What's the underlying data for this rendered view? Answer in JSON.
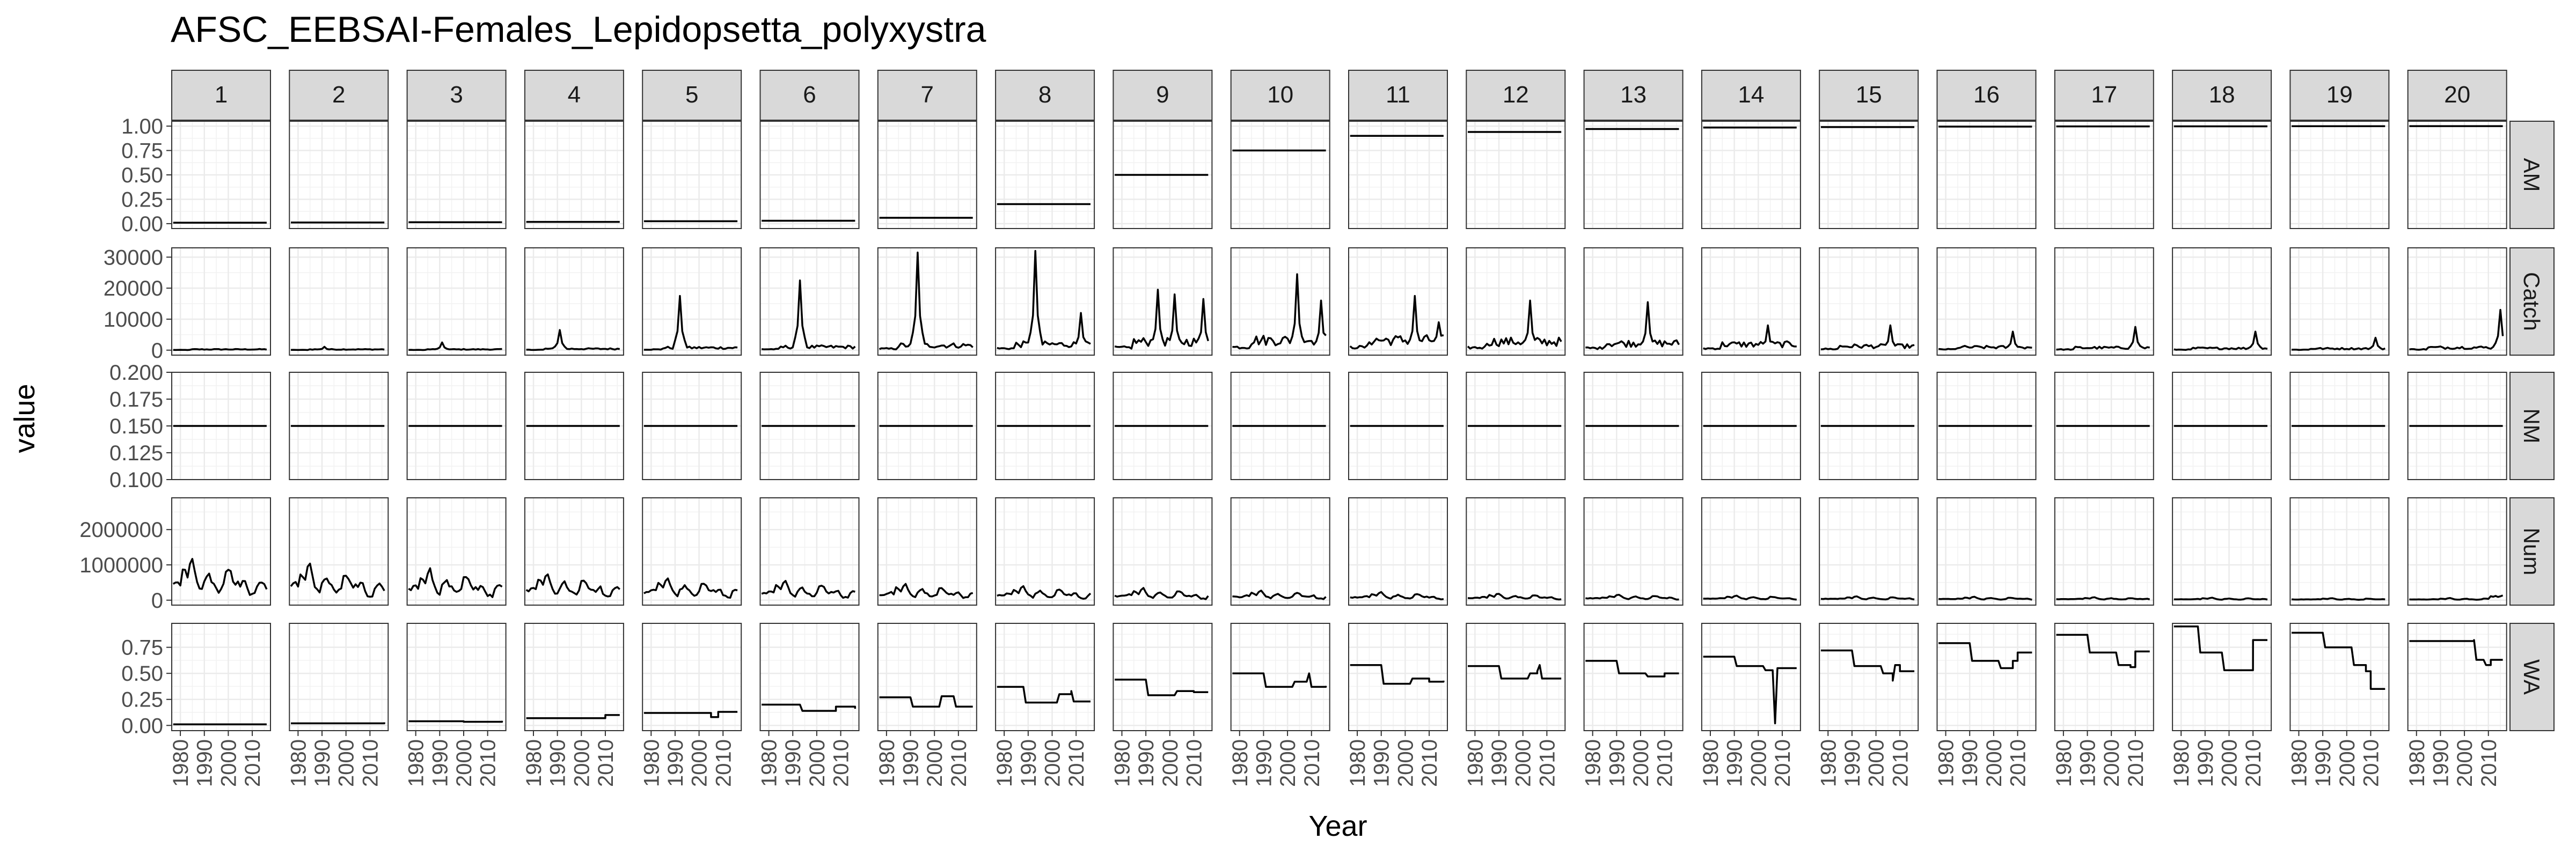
{
  "chart_data": {
    "type": "line",
    "title": "AFSC_EEBSAI-Females_Lepidopsetta_polyxystra",
    "xlabel": "Year",
    "ylabel": "value",
    "columns": [
      "1",
      "2",
      "3",
      "4",
      "5",
      "6",
      "7",
      "8",
      "9",
      "10",
      "11",
      "12",
      "13",
      "14",
      "15",
      "16",
      "17",
      "18",
      "19",
      "20"
    ],
    "x_ticks": [
      1980,
      1990,
      2000,
      2010
    ],
    "x_tick_labels": [
      "1980",
      "1990",
      "2000",
      "2010"
    ],
    "xlim": [
      1976.4,
      2017.6
    ],
    "grid": true,
    "legend": "none",
    "line_color": "#000000",
    "rows": [
      {
        "name": "AM",
        "ylim": [
          -0.05,
          1.05
        ],
        "y_ticks": [
          0.0,
          0.25,
          0.5,
          0.75,
          1.0
        ],
        "y_tick_labels": [
          "0.00",
          "0.25",
          "0.50",
          "0.75",
          "1.00"
        ],
        "constant": true,
        "values": [
          0.01,
          0.012,
          0.015,
          0.018,
          0.025,
          0.03,
          0.06,
          0.2,
          0.5,
          0.75,
          0.9,
          0.94,
          0.97,
          0.985,
          0.99,
          0.995,
          0.997,
          0.998,
          0.999,
          1.0
        ]
      },
      {
        "name": "Catch",
        "ylim": [
          -1600,
          33000
        ],
        "y_ticks": [
          0,
          10000,
          20000,
          30000
        ],
        "y_tick_labels": [
          "0",
          "10000",
          "20000",
          "30000"
        ],
        "peaks": [
          [],
          [
            [
              1991,
              1100
            ]
          ],
          [
            [
              1991,
              2500
            ]
          ],
          [
            [
              1991,
              6500
            ]
          ],
          [
            [
              1992,
              17500
            ]
          ],
          [
            [
              1993,
              22500
            ]
          ],
          [
            [
              1993,
              31500
            ]
          ],
          [
            [
              1993,
              32000
            ],
            [
              2012,
              12000
            ]
          ],
          [
            [
              1995,
              19500
            ],
            [
              2002,
              18000
            ],
            [
              2014,
              16500
            ]
          ],
          [
            [
              2004,
              24500
            ],
            [
              2014,
              16000
            ]
          ],
          [
            [
              2004,
              17500
            ],
            [
              2014,
              9000
            ]
          ],
          [
            [
              2003,
              16000
            ]
          ],
          [
            [
              2003,
              15500
            ]
          ],
          [
            [
              2004,
              8000
            ]
          ],
          [
            [
              2006,
              8000
            ]
          ],
          [
            [
              2008,
              6000
            ]
          ],
          [
            [
              2010,
              7500
            ]
          ],
          [
            [
              2011,
              6000
            ]
          ],
          [
            [
              2012,
              4000
            ]
          ],
          [
            [
              2015,
              13000
            ]
          ]
        ],
        "base": [
          300,
          300,
          300,
          500,
          900,
          1200,
          1800,
          2200,
          3200,
          3800,
          3800,
          3200,
          2600,
          2200,
          1500,
          1100,
          900,
          700,
          600,
          1000
        ]
      },
      {
        "name": "NM",
        "ylim": [
          0.1,
          0.2
        ],
        "y_ticks": [
          0.1,
          0.125,
          0.15,
          0.175,
          0.2
        ],
        "y_tick_labels": [
          "0.100",
          "0.125",
          "0.150",
          "0.175",
          "0.200"
        ],
        "constant": true,
        "values": [
          0.15,
          0.15,
          0.15,
          0.15,
          0.15,
          0.15,
          0.15,
          0.15,
          0.15,
          0.15,
          0.15,
          0.15,
          0.15,
          0.15,
          0.15,
          0.15,
          0.15,
          0.15,
          0.15,
          0.15
        ]
      },
      {
        "name": "Num",
        "ylim": [
          -140000,
          2900000
        ],
        "y_ticks": [
          0,
          1000000,
          2000000
        ],
        "y_tick_labels": [
          "0",
          "1000000",
          "2000000"
        ],
        "scale": [
          1.0,
          0.85,
          0.74,
          0.64,
          0.54,
          0.46,
          0.39,
          0.33,
          0.28,
          0.23,
          0.19,
          0.16,
          0.13,
          0.11,
          0.09,
          0.08,
          0.07,
          0.06,
          0.05,
          0.1
        ]
      },
      {
        "name": "WA",
        "ylim": [
          -0.05,
          0.98
        ],
        "y_ticks": [
          0.0,
          0.25,
          0.5,
          0.75
        ],
        "y_tick_labels": [
          "0.00",
          "0.25",
          "0.50",
          "0.75"
        ],
        "steps": [
          [
            [
              1977,
              0.01
            ],
            [
              2016,
              0.01
            ]
          ],
          [
            [
              1977,
              0.02
            ],
            [
              2016,
              0.03
            ]
          ],
          [
            [
              1977,
              0.04
            ],
            [
              2000,
              0.035
            ],
            [
              2016,
              0.045
            ]
          ],
          [
            [
              1977,
              0.07
            ],
            [
              2008,
              0.07
            ],
            [
              2010,
              0.1
            ],
            [
              2016,
              0.1
            ]
          ],
          [
            [
              1977,
              0.12
            ],
            [
              1995,
              0.12
            ],
            [
              2005,
              0.08
            ],
            [
              2008,
              0.13
            ],
            [
              2016,
              0.13
            ]
          ],
          [
            [
              1977,
              0.2
            ],
            [
              1993,
              0.2
            ],
            [
              1994,
              0.14
            ],
            [
              2006,
              0.14
            ],
            [
              2008,
              0.18
            ],
            [
              2016,
              0.16
            ]
          ],
          [
            [
              1977,
              0.27
            ],
            [
              1990,
              0.27
            ],
            [
              1991,
              0.18
            ],
            [
              2002,
              0.18
            ],
            [
              2003,
              0.28
            ],
            [
              2008,
              0.28
            ],
            [
              2009,
              0.18
            ],
            [
              2016,
              0.18
            ]
          ],
          [
            [
              1977,
              0.37
            ],
            [
              1988,
              0.37
            ],
            [
              1989,
              0.22
            ],
            [
              2002,
              0.22
            ],
            [
              2003,
              0.3
            ],
            [
              2008,
              0.33
            ],
            [
              2009,
              0.23
            ],
            [
              2016,
              0.23
            ]
          ],
          [
            [
              1977,
              0.44
            ],
            [
              1990,
              0.44
            ],
            [
              1991,
              0.29
            ],
            [
              2002,
              0.29
            ],
            [
              2003,
              0.33
            ],
            [
              2010,
              0.32
            ],
            [
              2016,
              0.32
            ]
          ],
          [
            [
              1977,
              0.5
            ],
            [
              1990,
              0.5
            ],
            [
              1991,
              0.37
            ],
            [
              2002,
              0.37
            ],
            [
              2003,
              0.42
            ],
            [
              2008,
              0.42
            ],
            [
              2009,
              0.5
            ],
            [
              2010,
              0.37
            ],
            [
              2016,
              0.38
            ]
          ],
          [
            [
              1977,
              0.58
            ],
            [
              1990,
              0.58
            ],
            [
              1991,
              0.4
            ],
            [
              2002,
              0.4
            ],
            [
              2003,
              0.45
            ],
            [
              2010,
              0.42
            ],
            [
              2016,
              0.43
            ]
          ],
          [
            [
              1977,
              0.57
            ],
            [
              1990,
              0.57
            ],
            [
              1991,
              0.45
            ],
            [
              2002,
              0.45
            ],
            [
              2003,
              0.5
            ],
            [
              2006,
              0.52
            ],
            [
              2007,
              0.58
            ],
            [
              2008,
              0.45
            ],
            [
              2016,
              0.45
            ]
          ],
          [
            [
              1977,
              0.62
            ],
            [
              1990,
              0.62
            ],
            [
              1991,
              0.5
            ],
            [
              2002,
              0.5
            ],
            [
              2003,
              0.47
            ],
            [
              2010,
              0.5
            ],
            [
              2016,
              0.5
            ]
          ],
          [
            [
              1977,
              0.66
            ],
            [
              1990,
              0.66
            ],
            [
              1991,
              0.57
            ],
            [
              2002,
              0.57
            ],
            [
              2003,
              0.53
            ],
            [
              2006,
              0.53
            ],
            [
              2007,
              0.02
            ],
            [
              2008,
              0.55
            ],
            [
              2016,
              0.55
            ]
          ],
          [
            [
              1977,
              0.72
            ],
            [
              1990,
              0.72
            ],
            [
              1991,
              0.57
            ],
            [
              2002,
              0.57
            ],
            [
              2003,
              0.5
            ],
            [
              2007,
              0.43
            ],
            [
              2008,
              0.58
            ],
            [
              2010,
              0.52
            ],
            [
              2016,
              0.52
            ]
          ],
          [
            [
              1977,
              0.79
            ],
            [
              1990,
              0.79
            ],
            [
              1991,
              0.62
            ],
            [
              2002,
              0.62
            ],
            [
              2003,
              0.55
            ],
            [
              2008,
              0.62
            ],
            [
              2010,
              0.7
            ],
            [
              2016,
              0.7
            ]
          ],
          [
            [
              1977,
              0.87
            ],
            [
              1990,
              0.87
            ],
            [
              1991,
              0.7
            ],
            [
              2002,
              0.7
            ],
            [
              2003,
              0.58
            ],
            [
              2008,
              0.56
            ],
            [
              2010,
              0.71
            ],
            [
              2016,
              0.71
            ]
          ],
          [
            [
              1977,
              0.95
            ],
            [
              1987,
              0.95
            ],
            [
              1988,
              0.7
            ],
            [
              1997,
              0.7
            ],
            [
              1998,
              0.53
            ],
            [
              2008,
              0.53
            ],
            [
              2010,
              0.82
            ],
            [
              2016,
              0.82
            ]
          ],
          [
            [
              1977,
              0.89
            ],
            [
              1990,
              0.89
            ],
            [
              1991,
              0.75
            ],
            [
              2002,
              0.75
            ],
            [
              2003,
              0.58
            ],
            [
              2008,
              0.52
            ],
            [
              2010,
              0.35
            ],
            [
              2016,
              0.35
            ]
          ],
          [
            [
              1977,
              0.81
            ],
            [
              2004,
              0.82
            ],
            [
              2005,
              0.63
            ],
            [
              2008,
              0.63
            ],
            [
              2009,
              0.58
            ],
            [
              2011,
              0.63
            ],
            [
              2016,
              0.63
            ]
          ]
        ]
      }
    ]
  }
}
